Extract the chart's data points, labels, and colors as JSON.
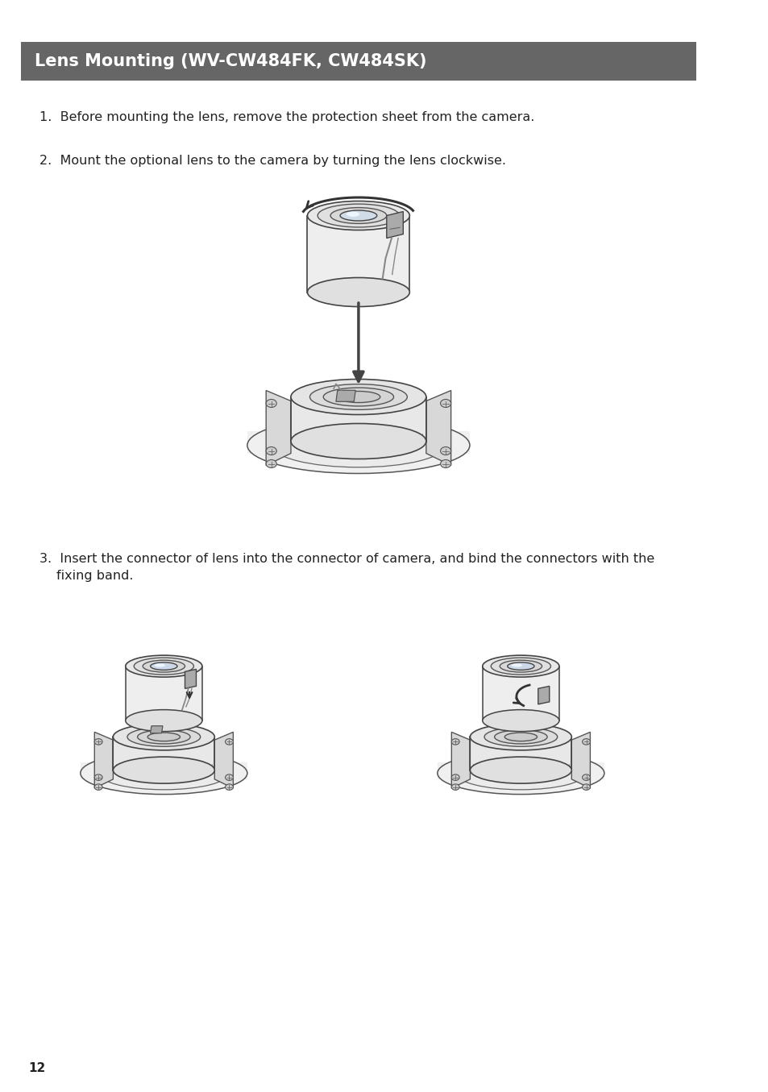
{
  "title": "Lens Mounting (WV-CW484FK, CW484SK)",
  "title_bg_color": "#666666",
  "title_text_color": "#ffffff",
  "page_number": "12",
  "bg_color": "#ffffff",
  "text_color": "#222222",
  "item1": "Before mounting the lens, remove the protection sheet from the camera.",
  "item2": "Mount the optional lens to the camera by turning the lens clockwise.",
  "item3_line1": "3.  Insert the connector of lens into the connector of camera, and bind the connectors with the",
  "item3_line2": "fixing band.",
  "body_font_size": 11.5,
  "title_font_size": 15,
  "page_num_font_size": 11
}
